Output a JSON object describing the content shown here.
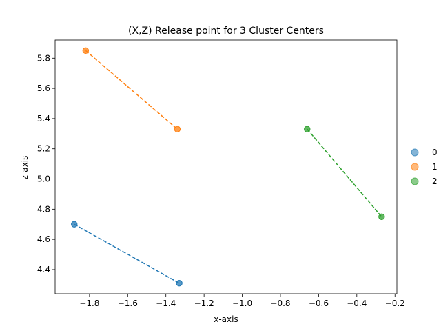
{
  "chart_data": {
    "type": "scatter",
    "title": "(X,Z) Release point for 3 Cluster Centers",
    "xlabel": "x-axis",
    "ylabel": "z-axis",
    "xlim": [
      -1.98,
      -0.19
    ],
    "ylim": [
      4.24,
      5.92
    ],
    "xticks": [
      -1.8,
      -1.6,
      -1.4,
      -1.2,
      -1.0,
      -0.8,
      -0.6,
      -0.4,
      -0.2
    ],
    "xtick_labels": [
      "−1.8",
      "−1.6",
      "−1.4",
      "−1.2",
      "−1.0",
      "−0.8",
      "−0.6",
      "−0.4",
      "−0.2"
    ],
    "yticks": [
      4.4,
      4.6,
      4.8,
      5.0,
      5.2,
      5.4,
      5.6,
      5.8
    ],
    "ytick_labels": [
      "4.4",
      "4.6",
      "4.8",
      "5.0",
      "5.2",
      "5.4",
      "5.6",
      "5.8"
    ],
    "grid": false,
    "legend_position": "outside-right",
    "series": [
      {
        "name": "0",
        "color": "#1f77b4",
        "points": [
          {
            "x": -1.88,
            "y": 4.7
          },
          {
            "x": -1.33,
            "y": 4.31
          }
        ]
      },
      {
        "name": "1",
        "color": "#ff7f0e",
        "points": [
          {
            "x": -1.82,
            "y": 5.85
          },
          {
            "x": -1.34,
            "y": 5.33
          }
        ]
      },
      {
        "name": "2",
        "color": "#2ca02c",
        "points": [
          {
            "x": -0.66,
            "y": 5.33
          },
          {
            "x": -0.27,
            "y": 4.75
          }
        ]
      }
    ]
  }
}
